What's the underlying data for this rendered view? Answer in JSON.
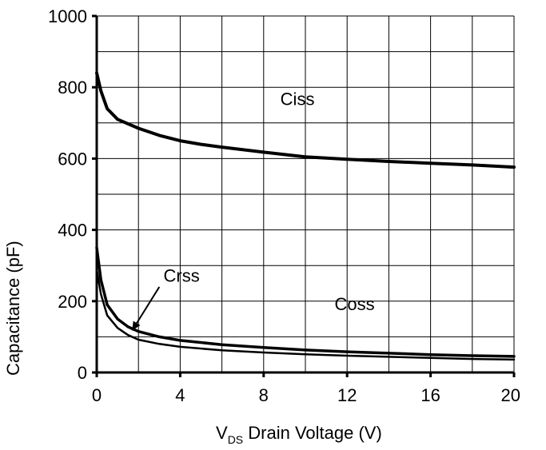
{
  "chart_data": {
    "type": "line",
    "title": "",
    "xlabel": "V",
    "xlabel_sub": "DS",
    "xlabel_rest": " Drain Voltage (V)",
    "ylabel": "Capacitance (pF)",
    "xlim": [
      0,
      20
    ],
    "ylim": [
      0,
      1000
    ],
    "x_ticks": [
      0,
      4,
      8,
      12,
      16,
      20
    ],
    "y_ticks": [
      0,
      200,
      400,
      600,
      800,
      1000
    ],
    "grid": true,
    "series": [
      {
        "name": "Ciss",
        "x": [
          0,
          0.2,
          0.5,
          1,
          2,
          3,
          4,
          5,
          6,
          8,
          10,
          12,
          14,
          16,
          18,
          20
        ],
        "y": [
          840,
          790,
          740,
          710,
          685,
          665,
          650,
          640,
          632,
          618,
          605,
          598,
          592,
          587,
          582,
          576
        ]
      },
      {
        "name": "Coss",
        "x": [
          0,
          0.2,
          0.5,
          1,
          1.5,
          2,
          3,
          4,
          6,
          8,
          10,
          12,
          14,
          16,
          18,
          20
        ],
        "y": [
          350,
          260,
          190,
          150,
          128,
          115,
          100,
          90,
          78,
          70,
          63,
          58,
          54,
          50,
          47,
          45
        ]
      },
      {
        "name": "Crss",
        "x": [
          0,
          0.2,
          0.5,
          1,
          1.5,
          2,
          3,
          4,
          6,
          8,
          10,
          12,
          14,
          16,
          18,
          20
        ],
        "y": [
          290,
          220,
          160,
          125,
          105,
          92,
          80,
          72,
          62,
          56,
          51,
          47,
          44,
          41,
          38,
          36
        ]
      }
    ],
    "annotations": [
      {
        "text": "Ciss",
        "x": 8.8,
        "y": 750
      },
      {
        "text": "Crss",
        "x": 3.2,
        "y": 255
      },
      {
        "text": "Coss",
        "x": 11.4,
        "y": 175
      }
    ]
  }
}
